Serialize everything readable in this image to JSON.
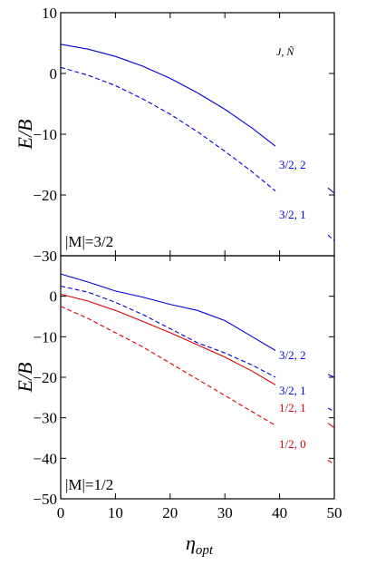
{
  "chart_data": {
    "type": "line",
    "x_label_main": "η",
    "x_label_sub": "opt",
    "x_ticks": [
      "0",
      "10",
      "20",
      "30",
      "40",
      "50"
    ],
    "xlim": [
      0,
      50
    ],
    "legend_title": "J, Ñ",
    "colors": {
      "blue": "#0000dd",
      "red": "#dd0000"
    },
    "panels": [
      {
        "id": "top",
        "ylabel": "E/B",
        "ylim": [
          -30,
          10
        ],
        "y_ticks": [
          "10",
          "0",
          "−10",
          "−20",
          "−30"
        ],
        "annotation": "|M|=3/2",
        "series": [
          {
            "label": "3/2, 2",
            "color": "blue",
            "dash": "solid",
            "x": [
              0,
              5,
              10,
              15,
              20,
              25,
              30,
              35,
              40,
              45,
              50
            ],
            "y": [
              4.8,
              4.0,
              2.8,
              1.2,
              -0.8,
              -3.2,
              -5.9,
              -9.0,
              -12.5,
              -16.0,
              -19.7
            ]
          },
          {
            "label": "3/2, 1",
            "color": "blue",
            "dash": "dashed",
            "x": [
              0,
              5,
              10,
              15,
              20,
              25,
              30,
              35,
              40,
              45,
              50
            ],
            "y": [
              1.0,
              -0.3,
              -2.0,
              -4.2,
              -6.7,
              -9.6,
              -12.8,
              -16.2,
              -19.9,
              -23.6,
              -27.5
            ]
          }
        ]
      },
      {
        "id": "bottom",
        "ylabel": "E/B",
        "ylim": [
          -50,
          10
        ],
        "y_ticks": [
          "0",
          "−10",
          "−20",
          "−30",
          "−40",
          "−50"
        ],
        "annotation": "|M|=1/2",
        "series": [
          {
            "label": "3/2, 2",
            "color": "blue",
            "dash": "solid",
            "x": [
              0,
              5,
              10,
              15,
              20,
              25,
              30,
              35,
              40,
              45,
              50
            ],
            "y": [
              5.5,
              3.5,
              1.3,
              -0.2,
              -2.0,
              -3.5,
              -6.0,
              -10.0,
              -14.0,
              -17.0,
              -20.0
            ]
          },
          {
            "label": "3/2, 1",
            "color": "blue",
            "dash": "dashed",
            "x": [
              0,
              5,
              10,
              15,
              20,
              25,
              30,
              35,
              40,
              45,
              50
            ],
            "y": [
              2.5,
              1.0,
              -1.5,
              -4.5,
              -8.0,
              -11.5,
              -14.0,
              -17.0,
              -20.5,
              -24.5,
              -28.5
            ]
          },
          {
            "label": "1/2, 1",
            "color": "red",
            "dash": "solid",
            "x": [
              0,
              5,
              10,
              15,
              20,
              25,
              30,
              35,
              40,
              45,
              50
            ],
            "y": [
              0.5,
              -1.2,
              -3.5,
              -6.2,
              -9.0,
              -12.0,
              -15.0,
              -18.5,
              -22.5,
              -27.5,
              -32.5
            ]
          },
          {
            "label": "1/2, 0",
            "color": "red",
            "dash": "dashed",
            "x": [
              0,
              5,
              10,
              15,
              20,
              25,
              30,
              35,
              40,
              45,
              50
            ],
            "y": [
              -2.5,
              -5.5,
              -9.0,
              -12.5,
              -16.5,
              -20.5,
              -24.5,
              -28.5,
              -32.5,
              -37.0,
              -41.5
            ]
          }
        ]
      }
    ]
  }
}
